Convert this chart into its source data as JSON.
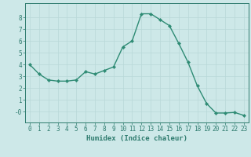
{
  "x": [
    0,
    1,
    2,
    3,
    4,
    5,
    6,
    7,
    8,
    9,
    10,
    11,
    12,
    13,
    14,
    15,
    16,
    17,
    18,
    19,
    20,
    21,
    22,
    23
  ],
  "y": [
    4.0,
    3.2,
    2.7,
    2.6,
    2.6,
    2.7,
    3.4,
    3.2,
    3.5,
    3.8,
    5.5,
    6.0,
    8.3,
    8.3,
    7.8,
    7.3,
    5.8,
    4.2,
    2.2,
    0.7,
    -0.1,
    -0.1,
    -0.05,
    -0.3
  ],
  "line_color": "#2e8b74",
  "marker": "D",
  "marker_size": 2.2,
  "bg_color": "#cde8e8",
  "xlabel": "Humidex (Indice chaleur)",
  "xlim": [
    -0.5,
    23.5
  ],
  "ylim": [
    -0.9,
    9.2
  ],
  "yticks": [
    0,
    1,
    2,
    3,
    4,
    5,
    6,
    7,
    8
  ],
  "ytick_labels": [
    "-0",
    "1",
    "2",
    "3",
    "4",
    "5",
    "6",
    "7",
    "8"
  ],
  "xticks": [
    0,
    1,
    2,
    3,
    4,
    5,
    6,
    7,
    8,
    9,
    10,
    11,
    12,
    13,
    14,
    15,
    16,
    17,
    18,
    19,
    20,
    21,
    22,
    23
  ],
  "font_color": "#2e7b6e",
  "spine_color": "#2e7b6e",
  "grid_color": "#b8d8d8",
  "xlabel_fontsize": 6.5,
  "tick_fontsize": 5.5,
  "linewidth": 1.0
}
